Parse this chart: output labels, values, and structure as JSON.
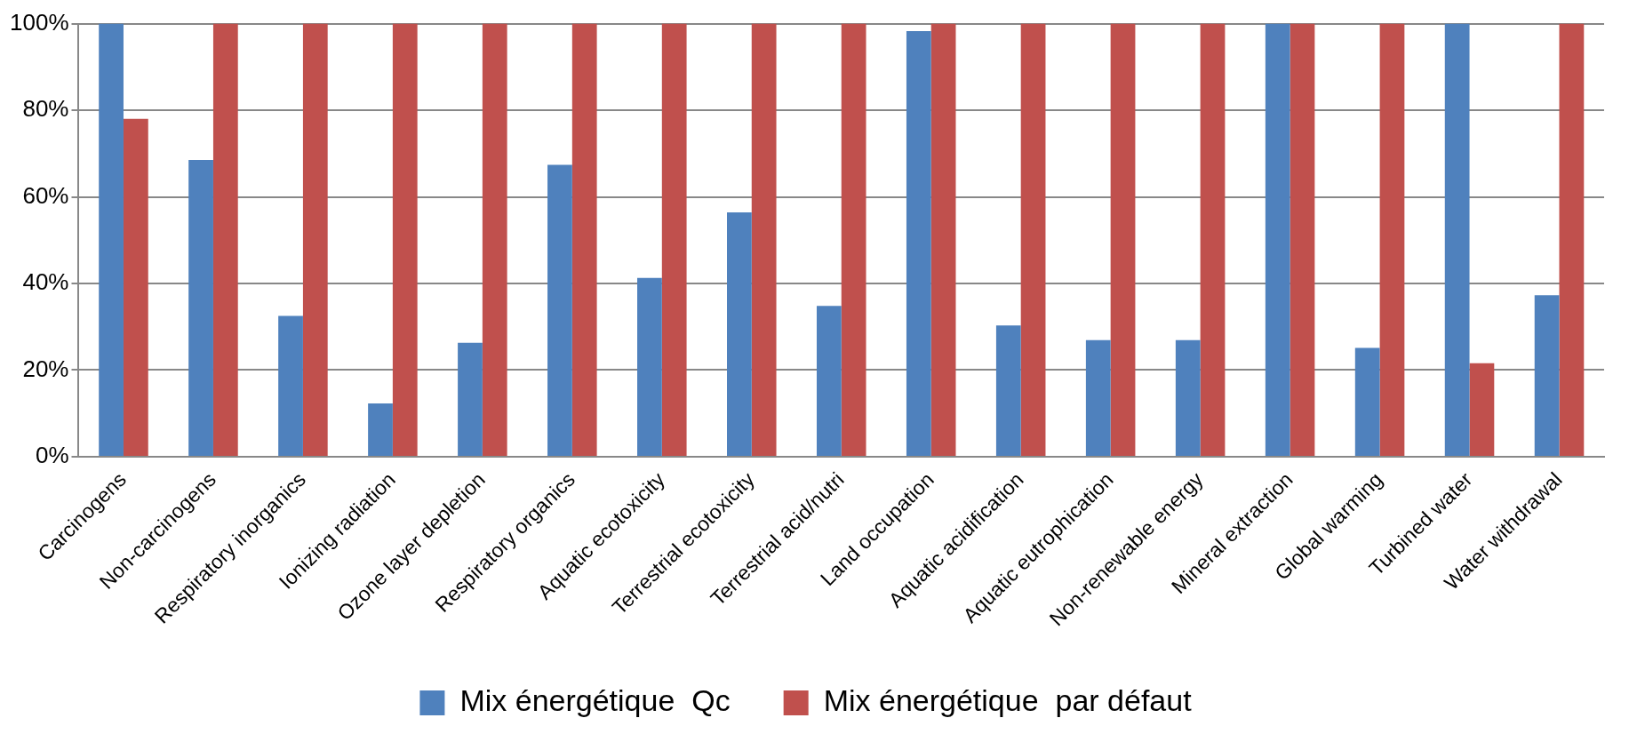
{
  "chart_data": {
    "type": "bar",
    "categories": [
      "Carcinogens",
      "Non-carcinogens",
      "Respiratory inorganics",
      "Ionizing radiation",
      "Ozone layer depletion",
      "Respiratory organics",
      "Aquatic ecotoxicity",
      "Terrestrial ecotoxicity",
      "Terrestrial acid/nutri",
      "Land occupation",
      "Aquatic acidification",
      "Aquatic eutrophication",
      "Non-renewable energy",
      "Mineral extraction",
      "Global warming",
      "Turbined water",
      "Water withdrawal"
    ],
    "series": [
      {
        "name": "Mix énergétique  Qc",
        "color": "#4f81bd",
        "values": [
          100,
          68.5,
          32.5,
          12.3,
          26.3,
          67.4,
          41.3,
          56.4,
          34.8,
          98.3,
          30.3,
          26.9,
          26.9,
          100,
          25.1,
          100,
          37.3
        ]
      },
      {
        "name": "Mix énergétique  par défaut",
        "color": "#c0504d",
        "values": [
          78,
          100,
          100,
          100,
          100,
          100,
          100,
          100,
          100,
          100,
          100,
          100,
          100,
          100,
          100,
          21.6,
          100
        ]
      }
    ],
    "ylim": [
      0,
      100
    ],
    "yticks": [
      {
        "value": 0,
        "label": "0%"
      },
      {
        "value": 20,
        "label": "20%"
      },
      {
        "value": 40,
        "label": "40%"
      },
      {
        "value": 60,
        "label": "60%"
      },
      {
        "value": 80,
        "label": "80%"
      },
      {
        "value": 100,
        "label": "100%"
      }
    ],
    "grid": "y",
    "legend": "bottom"
  }
}
